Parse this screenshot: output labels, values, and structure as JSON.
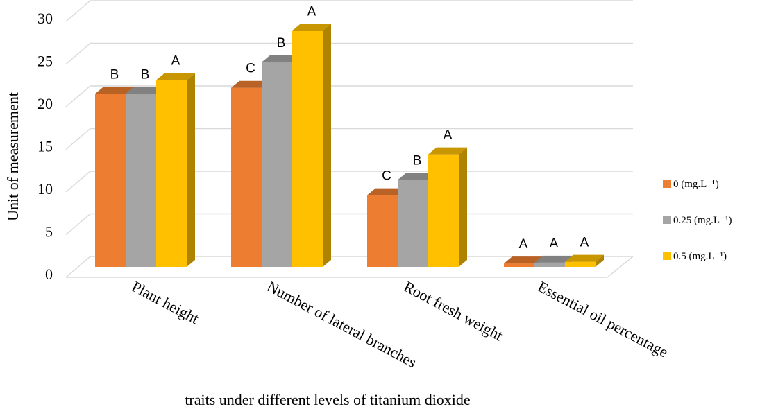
{
  "chart_data": {
    "type": "bar",
    "categories": [
      "Plant height",
      "Number of lateral branches",
      "Root fresh weight",
      "Essential oil percentage"
    ],
    "series": [
      {
        "name": "0 (mg.L⁻¹)",
        "color": "#ED7D31",
        "values": [
          20.3,
          21.0,
          8.4,
          0.4
        ],
        "letters": [
          "B",
          "C",
          "C",
          "A"
        ]
      },
      {
        "name": "0.25 (mg.L⁻¹)",
        "color": "#A5A5A5",
        "values": [
          20.3,
          24.0,
          10.2,
          0.5
        ],
        "letters": [
          "B",
          "B",
          "B",
          "A"
        ]
      },
      {
        "name": "0.5 (mg.L⁻¹)",
        "color": "#FFC000",
        "values": [
          21.9,
          27.7,
          13.2,
          0.6
        ],
        "letters": [
          "A",
          "A",
          "A",
          "A"
        ]
      }
    ],
    "yticks": [
      0,
      5,
      10,
      15,
      20,
      25,
      30
    ],
    "ylim": [
      0,
      30
    ],
    "xlabel": "traits under different levels of titanium dioxide",
    "ylabel": "Unit of measurement",
    "legend_position": "right",
    "grid": true,
    "style": "3d-clustered-column"
  }
}
